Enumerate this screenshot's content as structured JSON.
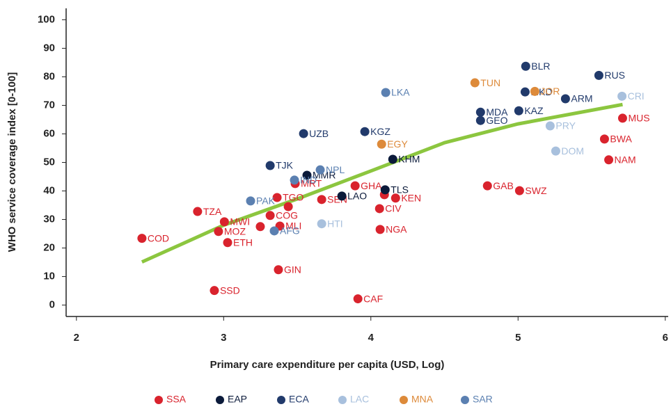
{
  "chart_data": {
    "type": "scatter",
    "xlabel": "Primary care expenditure per capita (USD, Log)",
    "ylabel": "WHO service coverage index [0-100]",
    "xlim": [
      1.93,
      6.02
    ],
    "ylim": [
      -4,
      104
    ],
    "xticks": [
      2,
      3,
      4,
      5,
      6
    ],
    "yticks": [
      0,
      10,
      20,
      30,
      40,
      50,
      60,
      70,
      80,
      90,
      100
    ],
    "series": [
      {
        "name": "SSA",
        "color": "#d9232d",
        "labels": [
          "COD",
          "SSD",
          "TZA",
          "MWI",
          "MOZ",
          "ETH",
          "GIN",
          "CAF",
          "COG",
          "TGO",
          "MRT",
          "MLI",
          null,
          null,
          "SEN",
          "GHA",
          "KEN",
          "CIV",
          "NGA",
          null,
          "GAB",
          "SWZ",
          "NAM",
          "BWA",
          "MUS"
        ],
        "x": [
          2.445,
          2.937,
          2.823,
          3.005,
          2.965,
          3.027,
          3.372,
          3.912,
          3.316,
          3.363,
          3.486,
          3.382,
          3.249,
          3.439,
          3.666,
          3.893,
          4.168,
          4.059,
          4.063,
          4.092,
          4.792,
          5.01,
          5.616,
          5.587,
          5.71
        ],
        "values": [
          23.4,
          5.1,
          32.8,
          29.2,
          25.8,
          21.9,
          12.4,
          2.2,
          31.4,
          37.7,
          42.6,
          27.7,
          27.5,
          34.5,
          37.0,
          41.8,
          37.5,
          33.8,
          26.5,
          38.7,
          41.8,
          40.1,
          50.9,
          58.2,
          65.5
        ]
      },
      {
        "name": "EAP",
        "color": "#0b1a3a",
        "labels": [
          "MMR",
          "KHM",
          "LAO",
          "TLS"
        ],
        "x": [
          3.566,
          4.149,
          3.803,
          4.097
        ],
        "values": [
          45.5,
          51.1,
          38.2,
          40.4
        ]
      },
      {
        "name": "ECA",
        "color": "#213a6b",
        "labels": [
          "BLR",
          "RUS",
          "ARM",
          "KAZ",
          "MDA",
          "GEO",
          "KGZ",
          "UZB",
          "TJK",
          "MKD"
        ],
        "x": [
          5.052,
          5.549,
          5.322,
          5.005,
          4.745,
          4.745,
          3.959,
          3.543,
          3.316,
          5.048
        ],
        "values": [
          83.7,
          80.5,
          72.3,
          68.1,
          67.6,
          64.7,
          60.8,
          60.1,
          48.9,
          74.7
        ]
      },
      {
        "name": "LAC",
        "color": "#a8c0dd",
        "labels": [
          "CRI",
          "PRY",
          "DOM",
          "HTI"
        ],
        "x": [
          5.706,
          5.218,
          5.256,
          3.666
        ],
        "values": [
          73.2,
          62.8,
          54.0,
          28.5
        ]
      },
      {
        "name": "MNA",
        "color": "#dd8a3a",
        "labels": [
          "TUN",
          "JOR",
          "EGY"
        ],
        "x": [
          4.707,
          5.114,
          4.073
        ],
        "values": [
          77.9,
          74.9,
          56.4
        ]
      },
      {
        "name": "SAR",
        "color": "#5b80b1",
        "labels": [
          "LKA",
          "NPL",
          "IND",
          "PAK",
          "AFG"
        ],
        "x": [
          4.101,
          3.656,
          3.481,
          3.183,
          3.344
        ],
        "values": [
          74.5,
          47.4,
          43.8,
          36.5,
          26.0
        ]
      }
    ],
    "trend": {
      "color": "#8cc63f",
      "x": [
        2.445,
        3,
        3.5,
        4,
        4.5,
        5,
        5.71
      ],
      "values": [
        15.1,
        28.0,
        37.2,
        47.0,
        56.9,
        63.5,
        70.3
      ]
    }
  }
}
